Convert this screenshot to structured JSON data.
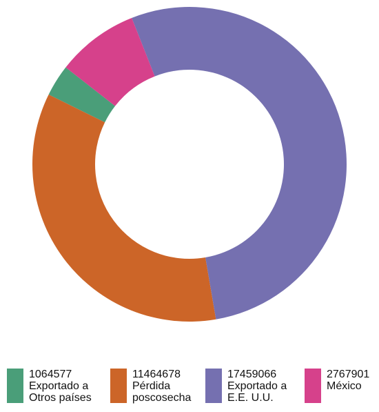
{
  "chart_data": {
    "type": "donut",
    "categories": [
      "Exportado a Otros países",
      "Pérdida poscosecha",
      "Exportado a E.E. U.U.",
      "México"
    ],
    "values": [
      1064577,
      11464678,
      17459066,
      2767901
    ],
    "colors": [
      "#4a9e79",
      "#cc6528",
      "#7570b0",
      "#d6418b"
    ]
  }
}
